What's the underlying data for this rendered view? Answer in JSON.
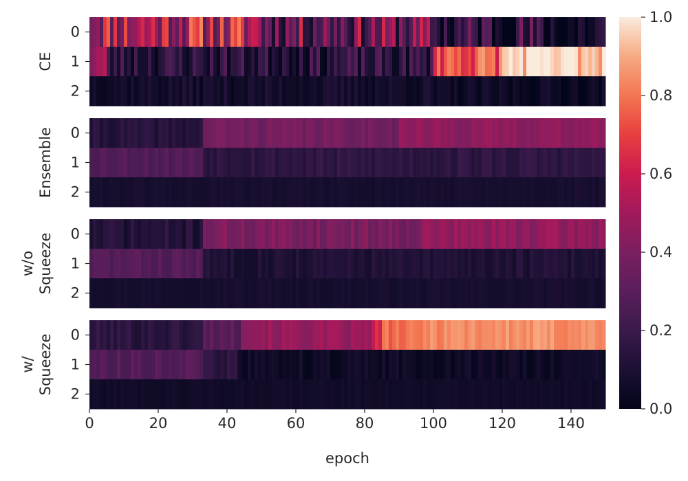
{
  "chart_data": {
    "type": "heatmap",
    "xlabel": "epoch",
    "x_ticks": [
      0,
      20,
      40,
      60,
      80,
      100,
      120,
      140
    ],
    "xlim": [
      0,
      150
    ],
    "num_epochs": 150,
    "row_labels": [
      "0",
      "1",
      "2"
    ],
    "colorbar": {
      "vmin": 0.0,
      "vmax": 1.0,
      "ticks": [
        "0.0",
        "0.2",
        "0.4",
        "0.6",
        "0.8",
        "1.0"
      ],
      "colormap": "rocket"
    },
    "panels": [
      {
        "label_lines": [
          "CE"
        ],
        "rows": [
          {
            "label": "0",
            "segments": [
              {
                "from": 0,
                "to": 50,
                "level": 0.55
              },
              {
                "from": 50,
                "to": 100,
                "level": 0.35
              },
              {
                "from": 100,
                "to": 130,
                "level": 0.15
              },
              {
                "from": 130,
                "to": 150,
                "level": 0.05
              }
            ],
            "noise": 0.3,
            "seed": 11
          },
          {
            "label": "1",
            "segments": [
              {
                "from": 0,
                "to": 5,
                "level": 0.5
              },
              {
                "from": 5,
                "to": 100,
                "level": 0.15
              },
              {
                "from": 100,
                "to": 120,
                "level": 0.75
              },
              {
                "from": 120,
                "to": 150,
                "level": 0.97
              }
            ],
            "noise": 0.15,
            "seed": 23
          },
          {
            "label": "2",
            "segments": [
              {
                "from": 0,
                "to": 100,
                "level": 0.07
              },
              {
                "from": 100,
                "to": 150,
                "level": 0.04
              }
            ],
            "noise": 0.05,
            "seed": 37
          }
        ]
      },
      {
        "label_lines": [
          "Ensemble"
        ],
        "rows": [
          {
            "label": "0",
            "segments": [
              {
                "from": 0,
                "to": 33,
                "level": 0.13
              },
              {
                "from": 33,
                "to": 90,
                "level": 0.38
              },
              {
                "from": 90,
                "to": 150,
                "level": 0.45
              }
            ],
            "noise": 0.04,
            "seed": 41
          },
          {
            "label": "1",
            "segments": [
              {
                "from": 0,
                "to": 33,
                "level": 0.28
              },
              {
                "from": 33,
                "to": 150,
                "level": 0.16
              }
            ],
            "noise": 0.04,
            "seed": 53
          },
          {
            "label": "2",
            "segments": [
              {
                "from": 0,
                "to": 150,
                "level": 0.08
              }
            ],
            "noise": 0.015,
            "seed": 61
          }
        ]
      },
      {
        "label_lines": [
          "w/o",
          "Squeeze"
        ],
        "rows": [
          {
            "label": "0",
            "segments": [
              {
                "from": 0,
                "to": 33,
                "level": 0.12
              },
              {
                "from": 33,
                "to": 97,
                "level": 0.4
              },
              {
                "from": 97,
                "to": 150,
                "level": 0.46
              }
            ],
            "noise": 0.06,
            "seed": 71
          },
          {
            "label": "1",
            "segments": [
              {
                "from": 0,
                "to": 33,
                "level": 0.28
              },
              {
                "from": 33,
                "to": 150,
                "level": 0.11
              }
            ],
            "noise": 0.04,
            "seed": 83
          },
          {
            "label": "2",
            "segments": [
              {
                "from": 0,
                "to": 150,
                "level": 0.08
              }
            ],
            "noise": 0.015,
            "seed": 97
          }
        ]
      },
      {
        "label_lines": [
          "w/",
          "Squeeze"
        ],
        "rows": [
          {
            "label": "0",
            "segments": [
              {
                "from": 0,
                "to": 33,
                "level": 0.15
              },
              {
                "from": 33,
                "to": 44,
                "level": 0.3
              },
              {
                "from": 44,
                "to": 82,
                "level": 0.47
              },
              {
                "from": 82,
                "to": 85,
                "level": 0.62
              },
              {
                "from": 85,
                "to": 97,
                "level": 0.78
              },
              {
                "from": 97,
                "to": 150,
                "level": 0.85
              }
            ],
            "noise": 0.05,
            "seed": 101
          },
          {
            "label": "1",
            "segments": [
              {
                "from": 0,
                "to": 33,
                "level": 0.28
              },
              {
                "from": 33,
                "to": 43,
                "level": 0.15
              },
              {
                "from": 43,
                "to": 150,
                "level": 0.05
              }
            ],
            "noise": 0.04,
            "seed": 113
          },
          {
            "label": "2",
            "segments": [
              {
                "from": 0,
                "to": 150,
                "level": 0.06
              }
            ],
            "noise": 0.015,
            "seed": 127
          }
        ]
      }
    ]
  }
}
